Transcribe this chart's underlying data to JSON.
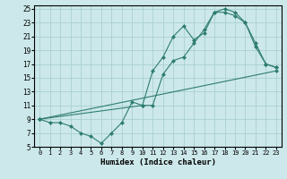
{
  "xlabel": "Humidex (Indice chaleur)",
  "bg_color": "#cce8ea",
  "grid_color": "#aacfcf",
  "line_color": "#2e7d6e",
  "xlim": [
    -0.5,
    23.5
  ],
  "ylim": [
    5,
    25.5
  ],
  "xticks": [
    0,
    1,
    2,
    3,
    4,
    5,
    6,
    7,
    8,
    9,
    10,
    11,
    12,
    13,
    14,
    15,
    16,
    17,
    18,
    19,
    20,
    21,
    22,
    23
  ],
  "yticks": [
    5,
    7,
    9,
    11,
    13,
    15,
    17,
    19,
    21,
    23,
    25
  ],
  "line1_x": [
    0,
    1,
    2,
    3,
    4,
    5,
    6,
    7,
    8,
    9,
    10,
    11,
    12,
    13,
    14,
    15,
    16,
    17,
    18,
    19,
    20,
    21,
    22,
    23
  ],
  "line1_y": [
    9,
    8.5,
    8.5,
    8,
    7,
    6.5,
    5.5,
    7,
    8.5,
    11.5,
    11,
    11,
    15.5,
    17.5,
    18,
    20,
    22,
    24.5,
    24.5,
    24,
    23,
    19.5,
    17,
    16.5
  ],
  "line2_x": [
    0,
    10,
    11,
    12,
    13,
    14,
    15,
    16,
    17,
    18,
    19,
    20,
    21,
    22,
    23
  ],
  "line2_y": [
    9,
    11,
    16,
    18,
    21,
    22.5,
    20.5,
    21.5,
    24.5,
    25,
    24.5,
    23,
    20,
    17,
    16.5
  ],
  "line3_x": [
    0,
    23
  ],
  "line3_y": [
    9,
    16
  ],
  "markersize": 2.5
}
